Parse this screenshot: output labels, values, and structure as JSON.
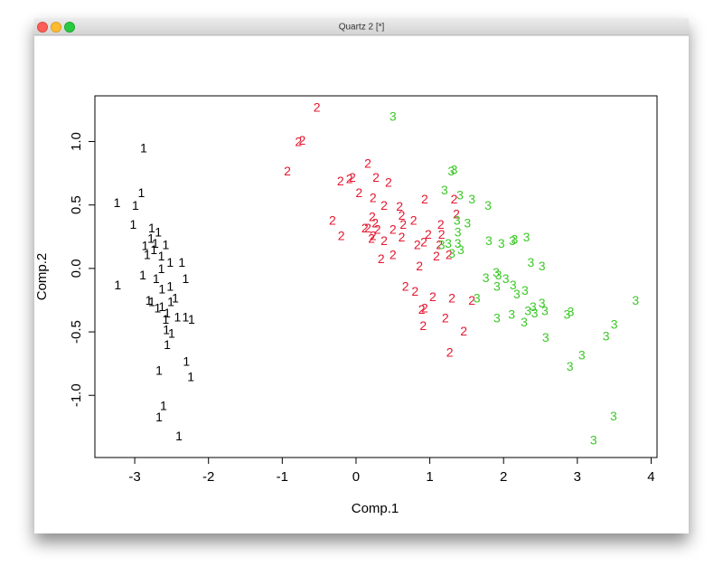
{
  "window_title": "Quartz 2 [*]",
  "chart_data": {
    "type": "scatter",
    "xlabel": "Comp.1",
    "ylabel": "Comp.2",
    "xlim": [
      -3.54,
      4.08
    ],
    "ylim": [
      -1.49,
      1.36
    ],
    "xticks": [
      -3,
      -2,
      -1,
      0,
      1,
      2,
      3,
      4
    ],
    "yticks": [
      {
        "value": -1,
        "label": "-1.0"
      },
      {
        "value": -0.5,
        "label": "-0.5"
      },
      {
        "value": 0,
        "label": "0.0"
      },
      {
        "value": 0.5,
        "label": "0.5"
      },
      {
        "value": 1,
        "label": "1.0"
      }
    ],
    "series": [
      {
        "name": "1",
        "color": "#000000",
        "x": [
          -3.24,
          -2.99,
          -2.91,
          -2.88,
          -3.02,
          -2.77,
          -2.68,
          -2.86,
          -2.78,
          -2.58,
          -2.72,
          -2.52,
          -2.89,
          -2.64,
          -2.71,
          -2.36,
          -2.31,
          -2.52,
          -2.63,
          -2.81,
          -2.77,
          -2.45,
          -2.69,
          -2.63,
          -2.56,
          -2.58,
          -2.42,
          -2.31,
          -2.23,
          -2.57,
          -2.56,
          -2.5,
          -2.3,
          -2.24,
          -2.67,
          -2.61,
          -2.67,
          -2.4,
          -3.23,
          -2.74,
          -2.64,
          -2.83,
          -2.51
        ],
        "values": [
          0.51,
          0.49,
          0.59,
          0.94,
          0.34,
          0.31,
          0.28,
          0.17,
          0.23,
          0.18,
          0.19,
          0.04,
          -0.06,
          -0.01,
          -0.09,
          0.04,
          -0.09,
          -0.15,
          -0.17,
          -0.26,
          -0.27,
          -0.24,
          -0.32,
          -0.31,
          -0.36,
          -0.41,
          -0.39,
          -0.39,
          -0.41,
          -0.49,
          -0.61,
          -0.52,
          -0.74,
          -0.86,
          -0.81,
          -1.09,
          -1.18,
          -1.33,
          -0.14,
          0.14,
          0.09,
          0.1,
          -0.27
        ]
      },
      {
        "name": "2",
        "color": "#e4162f",
        "x": [
          -0.53,
          -0.73,
          -0.78,
          -0.93,
          0.16,
          -0.05,
          -0.21,
          -0.09,
          0.27,
          0.44,
          0.04,
          0.23,
          0.38,
          0.59,
          0.93,
          -0.32,
          -0.2,
          0.22,
          0.26,
          0.16,
          0.12,
          0.29,
          0.62,
          0.64,
          0.78,
          1.33,
          1.36,
          1.15,
          0.23,
          0.38,
          0.5,
          0.83,
          0.92,
          0.98,
          1.16,
          1.09,
          0.34,
          0.5,
          0.86,
          1.26,
          0.67,
          0.8,
          1.04,
          0.93,
          0.89,
          1.3,
          1.57,
          1.21,
          0.91,
          1.46,
          1.27,
          0.62,
          0.21,
          1.13
        ],
        "values": [
          1.26,
          1,
          0.99,
          0.76,
          0.82,
          0.71,
          0.68,
          0.7,
          0.71,
          0.67,
          0.59,
          0.55,
          0.49,
          0.48,
          0.54,
          0.37,
          0.25,
          0.4,
          0.35,
          0.31,
          0.31,
          0.3,
          0.41,
          0.34,
          0.37,
          0.54,
          0.42,
          0.34,
          0.25,
          0.21,
          0.3,
          0.18,
          0.2,
          0.26,
          0.26,
          0.09,
          0.07,
          0.1,
          0.01,
          0.1,
          -0.15,
          -0.19,
          -0.23,
          -0.32,
          -0.33,
          -0.24,
          -0.26,
          -0.4,
          -0.46,
          -0.5,
          -0.67,
          0.24,
          0.23,
          0.18
        ]
      },
      {
        "name": "3",
        "color": "#3cc828",
        "x": [
          0.5,
          1.29,
          1.33,
          1.2,
          1.41,
          1.57,
          1.79,
          1.37,
          1.51,
          1.38,
          1.16,
          1.25,
          1.38,
          1.42,
          1.3,
          1.8,
          1.97,
          2.12,
          2.15,
          2.31,
          1.76,
          1.9,
          1.93,
          1.91,
          2.03,
          2.13,
          2.18,
          2.29,
          1.64,
          2.37,
          2.52,
          2.4,
          2.52,
          2.42,
          2.56,
          2.33,
          2.11,
          1.91,
          2.28,
          2.57,
          2.86,
          2.91,
          3.79,
          3.5,
          3.39,
          3.06,
          2.9,
          3.49,
          3.22
        ],
        "values": [
          1.19,
          0.76,
          0.77,
          0.61,
          0.57,
          0.54,
          0.49,
          0.37,
          0.35,
          0.28,
          0.18,
          0.19,
          0.19,
          0.14,
          0.11,
          0.21,
          0.19,
          0.21,
          0.22,
          0.24,
          -0.08,
          -0.04,
          -0.06,
          -0.15,
          -0.09,
          -0.14,
          -0.21,
          -0.18,
          -0.24,
          0.04,
          0.01,
          -0.31,
          -0.28,
          -0.36,
          -0.34,
          -0.34,
          -0.37,
          -0.4,
          -0.43,
          -0.55,
          -0.37,
          -0.35,
          -0.26,
          -0.45,
          -0.54,
          -0.69,
          -0.78,
          -1.17,
          -1.36
        ]
      }
    ]
  }
}
